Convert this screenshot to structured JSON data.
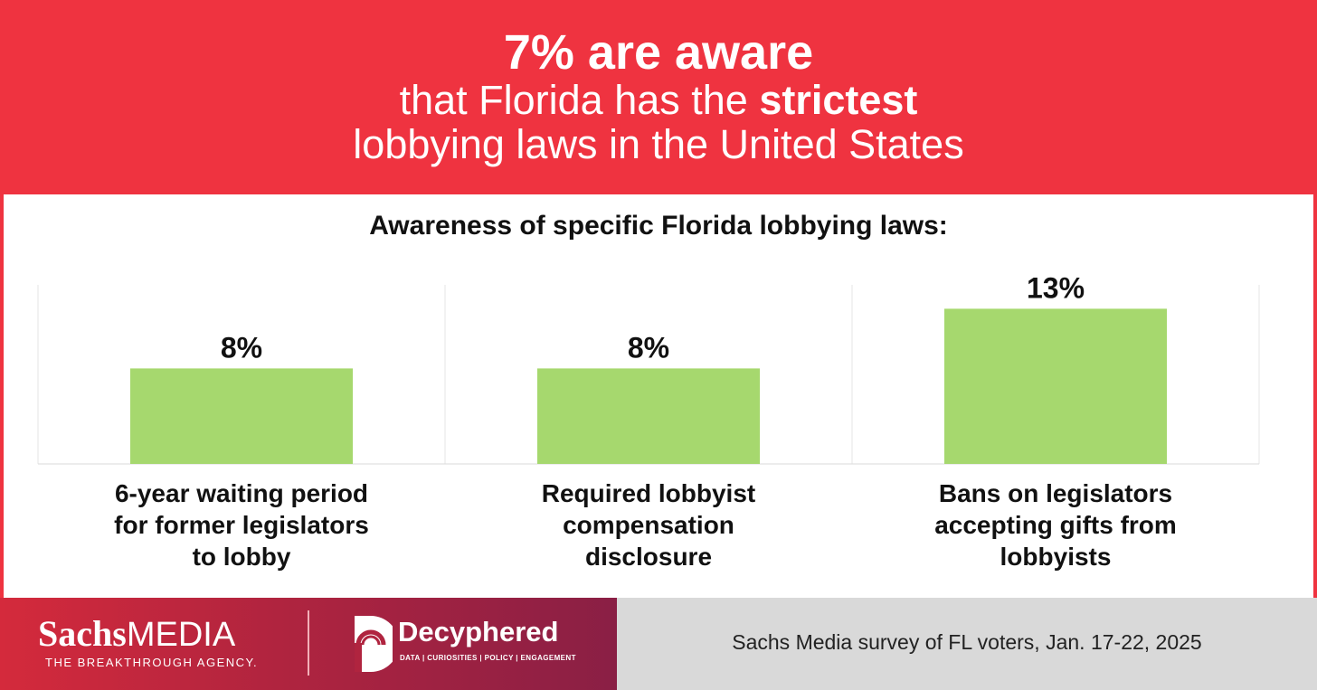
{
  "header": {
    "headline": "7% are aware",
    "line2_prefix": "that Florida has the ",
    "line2_bold": "strictest",
    "line3": "lobbying laws in the United States"
  },
  "chart_data": {
    "type": "bar",
    "title": "Awareness of specific Florida lobbying laws:",
    "categories": [
      [
        "6-year waiting period",
        "for former legislators",
        "to lobby"
      ],
      [
        "Required lobbyist",
        "compensation",
        "disclosure"
      ],
      [
        "Bans on legislators",
        "accepting gifts from",
        "lobbyists"
      ]
    ],
    "values": [
      8,
      8,
      13
    ],
    "value_labels": [
      "8%",
      "8%",
      "13%"
    ],
    "ylim": [
      0,
      15
    ],
    "bar_color": "#a6d86e",
    "grid": false
  },
  "footer": {
    "brand_sachs": "Sachs",
    "brand_media": "MEDIA",
    "tagline": "THE BREAKTHROUGH AGENCY.",
    "partner_name": "Decyphered",
    "partner_tagline": "DATA | CURIOSITIES | POLICY | ENGAGEMENT",
    "source": "Sachs Media survey of FL voters, Jan. 17-22, 2025"
  },
  "colors": {
    "header_bg": "#ef3340",
    "bar": "#a6d86e",
    "footer_right_bg": "#d9d9d9"
  }
}
